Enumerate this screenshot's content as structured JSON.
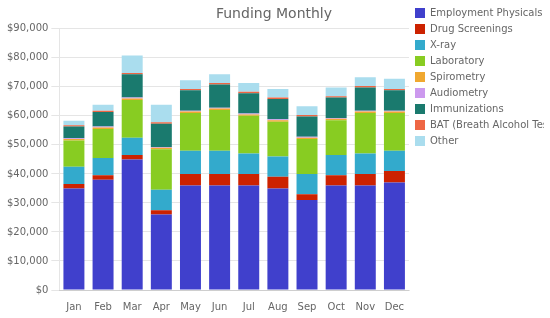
{
  "chart_data": {
    "type": "bar",
    "title": "Funding Monthly",
    "categories": [
      "Jan",
      "Feb",
      "Mar",
      "Apr",
      "May",
      "Jun",
      "Jul",
      "Aug",
      "Sep",
      "Oct",
      "Nov",
      "Dec"
    ],
    "series": [
      {
        "name": "Employment Physicals",
        "color": "#4040cc",
        "values": [
          35000,
          38000,
          45000,
          26000,
          36000,
          36000,
          36000,
          35000,
          31000,
          36000,
          36000,
          37000
        ]
      },
      {
        "name": "Drug Screenings",
        "color": "#cc2200",
        "values": [
          1500,
          1500,
          1500,
          1500,
          4000,
          4000,
          4000,
          4000,
          2000,
          3500,
          4000,
          4000
        ]
      },
      {
        "name": "X-ray",
        "color": "#33aacc",
        "values": [
          6000,
          6000,
          6000,
          7000,
          8000,
          8000,
          7000,
          7000,
          7000,
          7000,
          7000,
          7000
        ]
      },
      {
        "name": "Laboratory",
        "color": "#88cc22",
        "values": [
          9000,
          10000,
          13000,
          14000,
          13000,
          14000,
          13000,
          12000,
          12000,
          12000,
          14000,
          13000
        ]
      },
      {
        "name": "Spirometry",
        "color": "#f0a830",
        "values": [
          500,
          500,
          500,
          500,
          500,
          500,
          500,
          500,
          500,
          500,
          500,
          500
        ]
      },
      {
        "name": "Audiometry",
        "color": "#cc99ee",
        "values": [
          300,
          300,
          300,
          300,
          300,
          300,
          300,
          300,
          300,
          300,
          300,
          300
        ]
      },
      {
        "name": "Immunizations",
        "color": "#1a7a6e",
        "values": [
          4000,
          5000,
          8000,
          8000,
          7000,
          8000,
          7000,
          7000,
          7000,
          7000,
          8000,
          7000
        ]
      },
      {
        "name": "BAT (Breath Alcohol Test)",
        "color": "#ee6644",
        "values": [
          500,
          500,
          500,
          500,
          500,
          500,
          500,
          500,
          500,
          500,
          500,
          500
        ]
      },
      {
        "name": "Other",
        "color": "#aaddee",
        "values": [
          1500,
          2000,
          6000,
          6000,
          3000,
          3000,
          3000,
          3000,
          3000,
          3000,
          3000,
          3500
        ]
      }
    ],
    "stacked": true,
    "ylim": [
      0,
      90000
    ],
    "yticks": [
      {
        "value": 0,
        "label": "$0"
      },
      {
        "value": 10000,
        "label": "$10,000"
      },
      {
        "value": 20000,
        "label": "$20,000"
      },
      {
        "value": 30000,
        "label": "$30,000"
      },
      {
        "value": 40000,
        "label": "$40,000"
      },
      {
        "value": 50000,
        "label": "$50,000"
      },
      {
        "value": 60000,
        "label": "$60,000"
      },
      {
        "value": 70000,
        "label": "$70,000"
      },
      {
        "value": 80000,
        "label": "$80,000"
      },
      {
        "value": 90000,
        "label": "$90,000"
      }
    ],
    "grid": true,
    "legend": "right"
  }
}
